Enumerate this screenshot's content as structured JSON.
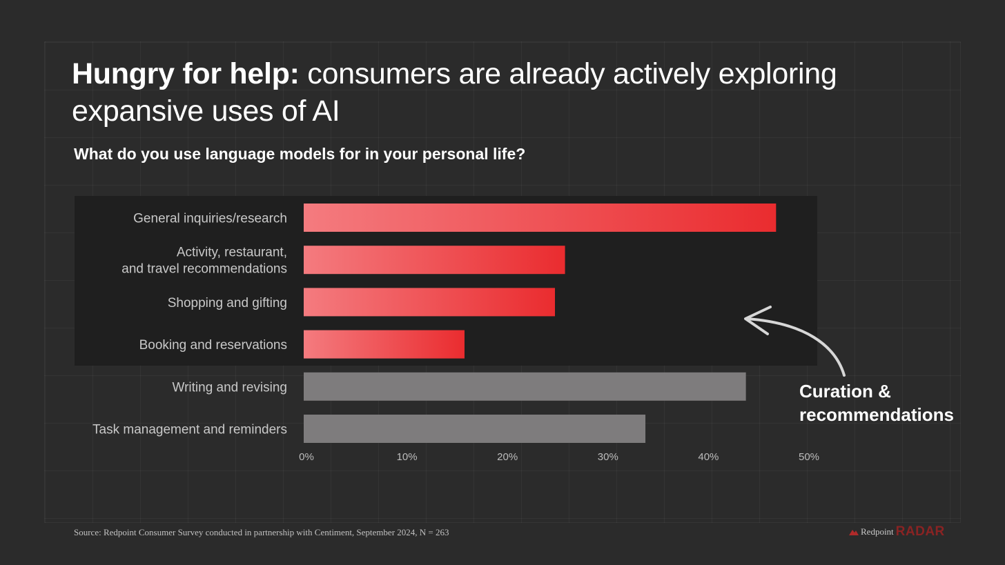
{
  "title": {
    "bold": "Hungry for help:",
    "rest": " consumers are already actively exploring expansive uses of AI"
  },
  "subtitle": "What do you  use language models for in your personal life?",
  "annotation": {
    "line1": "Curation &",
    "line2": "recommendations"
  },
  "source": "Source: Redpoint Consumer Survey conducted in partnership with Centiment, September 2024, N = 263",
  "logo": {
    "word1": "Redpoint",
    "word2": "RADAR"
  },
  "colors": {
    "background": "#2b2b2b",
    "highlight_band": "#1f1f1f",
    "red_light": "#f47b7f",
    "red_dark": "#ea2c2f",
    "grey_bar": "#7e7c7d",
    "logo_red": "#8a2323"
  },
  "chart_data": {
    "type": "bar",
    "orientation": "horizontal",
    "title": "What do you  use language models for in your personal life?",
    "categories": [
      [
        "General inquiries/research"
      ],
      [
        "Activity, restaurant,",
        "and travel recommendations"
      ],
      [
        "Shopping and gifting"
      ],
      [
        "Booking and reservations"
      ],
      [
        "Writing and revising"
      ],
      [
        "Task management and reminders"
      ]
    ],
    "values": [
      47,
      26,
      25,
      16,
      44,
      34
    ],
    "highlighted": [
      true,
      true,
      true,
      true,
      false,
      false
    ],
    "xlim": [
      0,
      50
    ],
    "xticks": [
      0,
      10,
      20,
      30,
      40,
      50
    ],
    "xtick_format": "percent",
    "grid": false,
    "legend": "none"
  }
}
